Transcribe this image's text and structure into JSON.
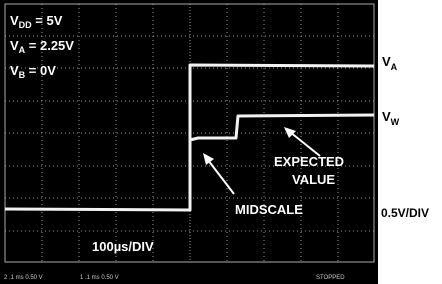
{
  "settings": [
    {
      "symbol": "V",
      "sub": "DD",
      "rest": " = 5V"
    },
    {
      "symbol": "V",
      "sub": "A",
      "rest": " = 2.25V"
    },
    {
      "symbol": "V",
      "sub": "B",
      "rest": " = 0V"
    }
  ],
  "channel_labels": [
    {
      "symbol": "V",
      "sub": "A"
    },
    {
      "symbol": "V",
      "sub": "W"
    }
  ],
  "vertical_scale": "0.5V/DIV",
  "time_scale": "100µs/DIV",
  "annotations": {
    "expected": [
      "EXPECTED",
      "VALUE"
    ],
    "midscale": "MIDSCALE"
  },
  "status_bar": {
    "ch2": "2 .1 ms 0.50 V",
    "ch1": "1 .1 ms 0.50 V",
    "state": "STOPPED"
  }
}
